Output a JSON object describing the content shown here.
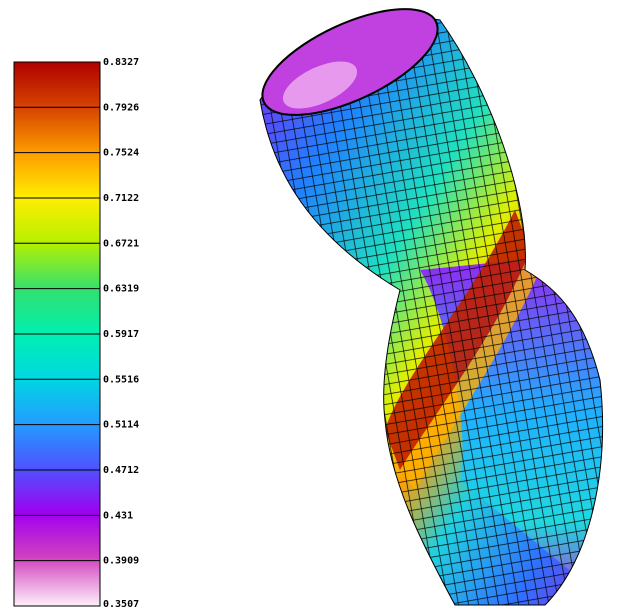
{
  "colorbar": {
    "ticks": [
      0.8327,
      0.7926,
      0.7524,
      0.7122,
      0.6721,
      0.6319,
      0.5917,
      0.5516,
      0.5114,
      0.4712,
      0.431,
      0.3909,
      0.3507
    ]
  }
}
